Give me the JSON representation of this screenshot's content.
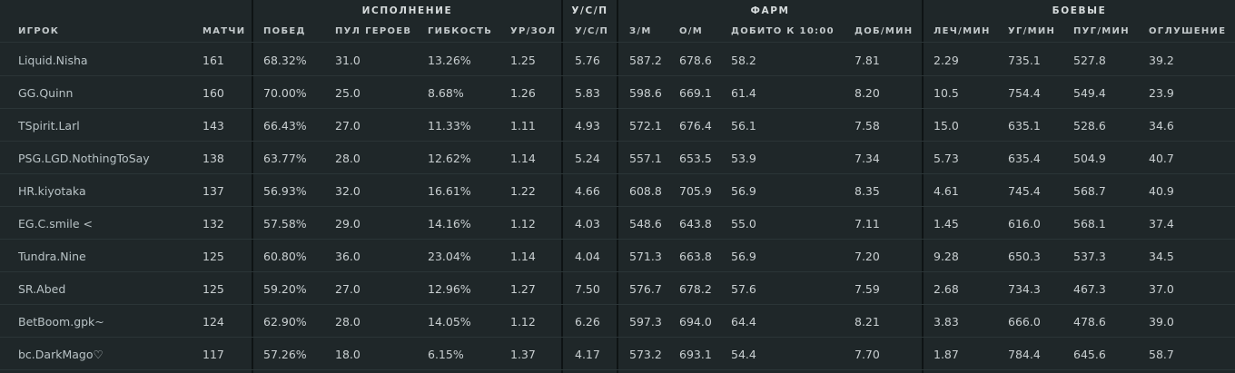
{
  "groups": {
    "performance": "ИСПОЛНЕНИЕ",
    "kda": "У/С/П",
    "farm": "ФАРМ",
    "combat": "БОЕВЫЕ"
  },
  "columns": {
    "player": "ИГРОК",
    "matches": "МАТЧИ",
    "winrate": "ПОБЕД",
    "hero_pool": "ПУЛ ГЕРОЕВ",
    "flexibility": "ГИБКОСТЬ",
    "xp_gold": "УР/ЗОЛ",
    "kda": "У/С/П",
    "gpm": "З/М",
    "xpm": "О/М",
    "lh_10": "ДОБИТО К 10:00",
    "lh_min": "ДОБ/МИН",
    "heal_min": "ЛЕЧ/МИН",
    "dmg_min": "УГ/МИН",
    "bld_min": "ПУГ/МИН",
    "stun": "ОГЛУШЕНИЕ"
  },
  "rows": [
    {
      "player": "Liquid.Nisha",
      "matches": "161",
      "winrate": "68.32%",
      "hero_pool": "31.0",
      "flexibility": "13.26%",
      "xp_gold": "1.25",
      "kda": "5.76",
      "gpm": "587.2",
      "xpm": "678.6",
      "lh_10": "58.2",
      "lh_min": "7.81",
      "heal_min": "2.29",
      "dmg_min": "735.1",
      "bld_min": "527.8",
      "stun": "39.2"
    },
    {
      "player": "GG.Quinn",
      "matches": "160",
      "winrate": "70.00%",
      "hero_pool": "25.0",
      "flexibility": "8.68%",
      "xp_gold": "1.26",
      "kda": "5.83",
      "gpm": "598.6",
      "xpm": "669.1",
      "lh_10": "61.4",
      "lh_min": "8.20",
      "heal_min": "10.5",
      "dmg_min": "754.4",
      "bld_min": "549.4",
      "stun": "23.9"
    },
    {
      "player": "TSpirit.Larl",
      "matches": "143",
      "winrate": "66.43%",
      "hero_pool": "27.0",
      "flexibility": "11.33%",
      "xp_gold": "1.11",
      "kda": "4.93",
      "gpm": "572.1",
      "xpm": "676.4",
      "lh_10": "56.1",
      "lh_min": "7.58",
      "heal_min": "15.0",
      "dmg_min": "635.1",
      "bld_min": "528.6",
      "stun": "34.6"
    },
    {
      "player": "PSG.LGD.NothingToSay",
      "matches": "138",
      "winrate": "63.77%",
      "hero_pool": "28.0",
      "flexibility": "12.62%",
      "xp_gold": "1.14",
      "kda": "5.24",
      "gpm": "557.1",
      "xpm": "653.5",
      "lh_10": "53.9",
      "lh_min": "7.34",
      "heal_min": "5.73",
      "dmg_min": "635.4",
      "bld_min": "504.9",
      "stun": "40.7"
    },
    {
      "player": "HR.kiyotaka",
      "matches": "137",
      "winrate": "56.93%",
      "hero_pool": "32.0",
      "flexibility": "16.61%",
      "xp_gold": "1.22",
      "kda": "4.66",
      "gpm": "608.8",
      "xpm": "705.9",
      "lh_10": "56.9",
      "lh_min": "8.35",
      "heal_min": "4.61",
      "dmg_min": "745.4",
      "bld_min": "568.7",
      "stun": "40.9"
    },
    {
      "player": "EG.C.smile <",
      "matches": "132",
      "winrate": "57.58%",
      "hero_pool": "29.0",
      "flexibility": "14.16%",
      "xp_gold": "1.12",
      "kda": "4.03",
      "gpm": "548.6",
      "xpm": "643.8",
      "lh_10": "55.0",
      "lh_min": "7.11",
      "heal_min": "1.45",
      "dmg_min": "616.0",
      "bld_min": "568.1",
      "stun": "37.4"
    },
    {
      "player": "Tundra.Nine",
      "matches": "125",
      "winrate": "60.80%",
      "hero_pool": "36.0",
      "flexibility": "23.04%",
      "xp_gold": "1.14",
      "kda": "4.04",
      "gpm": "571.3",
      "xpm": "663.8",
      "lh_10": "56.9",
      "lh_min": "7.20",
      "heal_min": "9.28",
      "dmg_min": "650.3",
      "bld_min": "537.3",
      "stun": "34.5"
    },
    {
      "player": "SR.Abed",
      "matches": "125",
      "winrate": "59.20%",
      "hero_pool": "27.0",
      "flexibility": "12.96%",
      "xp_gold": "1.27",
      "kda": "7.50",
      "gpm": "576.7",
      "xpm": "678.2",
      "lh_10": "57.6",
      "lh_min": "7.59",
      "heal_min": "2.68",
      "dmg_min": "734.3",
      "bld_min": "467.3",
      "stun": "37.0"
    },
    {
      "player": "BetBoom.gpk~",
      "matches": "124",
      "winrate": "62.90%",
      "hero_pool": "28.0",
      "flexibility": "14.05%",
      "xp_gold": "1.12",
      "kda": "6.26",
      "gpm": "597.3",
      "xpm": "694.0",
      "lh_10": "64.4",
      "lh_min": "8.21",
      "heal_min": "3.83",
      "dmg_min": "666.0",
      "bld_min": "478.6",
      "stun": "39.0"
    },
    {
      "player": "bc.DarkMago♡",
      "matches": "117",
      "winrate": "57.26%",
      "hero_pool": "18.0",
      "flexibility": "6.15%",
      "xp_gold": "1.37",
      "kda": "4.17",
      "gpm": "573.2",
      "xpm": "693.1",
      "lh_10": "54.4",
      "lh_min": "7.70",
      "heal_min": "1.87",
      "dmg_min": "784.4",
      "bld_min": "645.6",
      "stun": "58.7"
    }
  ]
}
